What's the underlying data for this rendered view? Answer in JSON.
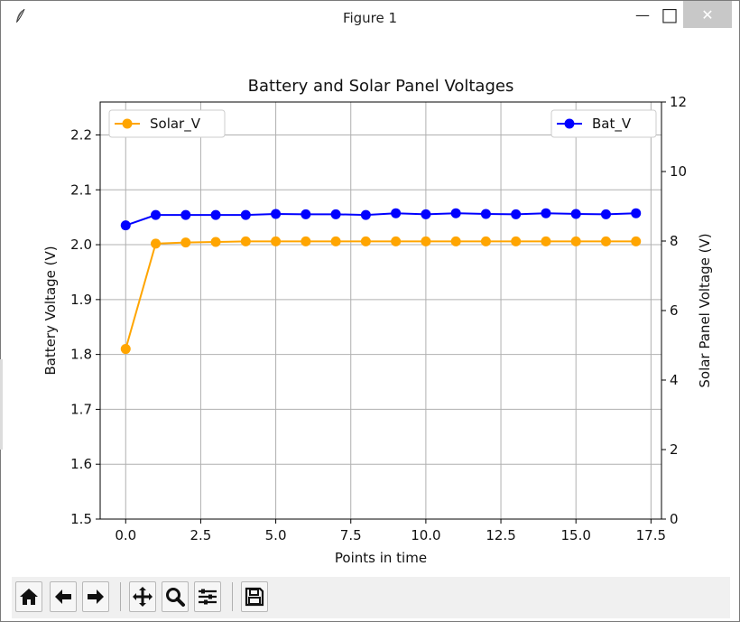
{
  "window": {
    "title": "Figure 1",
    "min_label": "—",
    "max_label": "□",
    "close_label": "✕"
  },
  "chart_data": {
    "type": "line",
    "title": "Battery and Solar Panel Voltages",
    "xlabel": "Points in time",
    "ylabel_left": "Battery Voltage (V)",
    "ylabel_right": "Solar Panel Voltage (V)",
    "xlim": [
      -0.85,
      17.85
    ],
    "ylim_left": [
      1.5,
      2.26
    ],
    "ylim_right": [
      0,
      12
    ],
    "xticks": [
      0.0,
      2.5,
      5.0,
      7.5,
      10.0,
      12.5,
      15.0,
      17.5
    ],
    "xtick_labels": [
      "0.0",
      "2.5",
      "5.0",
      "7.5",
      "10.0",
      "12.5",
      "15.0",
      "17.5"
    ],
    "yticks_left": [
      1.5,
      1.6,
      1.7,
      1.8,
      1.9,
      2.0,
      2.1,
      2.2
    ],
    "ytick_labels_left": [
      "1.5",
      "1.6",
      "1.7",
      "1.8",
      "1.9",
      "2.0",
      "2.1",
      "2.2"
    ],
    "yticks_right": [
      0,
      2,
      4,
      6,
      8,
      10,
      12
    ],
    "ytick_labels_right": [
      "0",
      "2",
      "4",
      "6",
      "8",
      "10",
      "12"
    ],
    "grid": true,
    "x": [
      0,
      1,
      2,
      3,
      4,
      5,
      6,
      7,
      8,
      9,
      10,
      11,
      12,
      13,
      14,
      15,
      16,
      17
    ],
    "series": [
      {
        "name": "Solar_V",
        "axis": "left",
        "color": "#ffa500",
        "legend_position": "upper left",
        "values": [
          1.81,
          2.002,
          2.004,
          2.005,
          2.006,
          2.006,
          2.006,
          2.006,
          2.006,
          2.006,
          2.006,
          2.006,
          2.006,
          2.006,
          2.006,
          2.006,
          2.006,
          2.006
        ]
      },
      {
        "name": "Bat_V",
        "axis": "right",
        "color": "#0000ff",
        "legend_position": "upper right",
        "values": [
          8.45,
          8.75,
          8.75,
          8.75,
          8.75,
          8.78,
          8.77,
          8.77,
          8.75,
          8.8,
          8.77,
          8.8,
          8.78,
          8.77,
          8.8,
          8.78,
          8.77,
          8.8
        ]
      }
    ]
  },
  "toolbar": {
    "buttons": [
      "home-icon",
      "back-arrow-icon",
      "forward-arrow-icon",
      "pan-icon",
      "zoom-icon",
      "subplots-icon",
      "save-icon"
    ]
  }
}
